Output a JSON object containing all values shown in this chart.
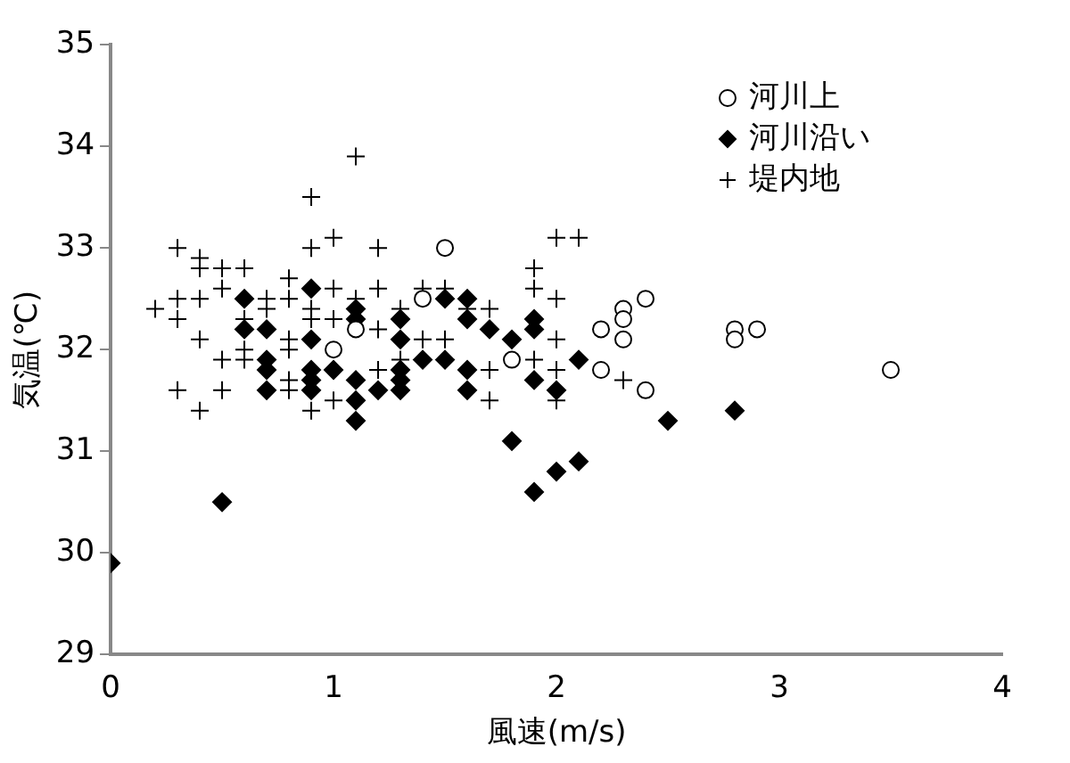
{
  "chart_data": {
    "type": "scatter",
    "xlabel": "風速(m/s)",
    "ylabel": "気温(℃)",
    "xlim": [
      0,
      4
    ],
    "xticks": [
      0,
      1,
      2,
      3,
      4
    ],
    "ylim": [
      29,
      35
    ],
    "yticks": [
      29,
      30,
      31,
      32,
      33,
      34,
      35
    ],
    "grid": false,
    "legend": "top right",
    "series": [
      {
        "name": "河川上",
        "color": "#000000",
        "marker": "circle",
        "x": [
          1.0,
          1.1,
          1.5,
          1.4,
          1.8,
          2.2,
          2.2,
          2.3,
          2.3,
          2.3,
          2.4,
          2.4,
          2.8,
          2.8,
          2.9,
          3.5
        ],
        "values": [
          32.0,
          32.2,
          33.0,
          32.5,
          31.9,
          32.2,
          31.8,
          32.4,
          32.3,
          32.1,
          32.5,
          31.6,
          32.2,
          32.1,
          32.2,
          31.8
        ]
      },
      {
        "name": "河川沿い",
        "color": "#000000",
        "marker": "diamond",
        "x": [
          0,
          0.5,
          0.6,
          0.6,
          0.7,
          0.7,
          0.7,
          0.7,
          0.9,
          0.9,
          0.9,
          0.9,
          0.9,
          1.0,
          1.1,
          1.1,
          1.1,
          1.1,
          1.1,
          1.2,
          1.3,
          1.3,
          1.3,
          1.3,
          1.3,
          1.4,
          1.5,
          1.5,
          1.6,
          1.6,
          1.6,
          1.6,
          1.7,
          1.8,
          1.8,
          1.9,
          1.9,
          1.9,
          1.9,
          2.0,
          2.0,
          2.1,
          2.1,
          2.5,
          2.8
        ],
        "values": [
          29.9,
          30.5,
          32.5,
          32.2,
          32.2,
          31.9,
          31.8,
          31.6,
          32.6,
          32.1,
          31.8,
          31.7,
          31.6,
          31.8,
          32.4,
          32.3,
          31.7,
          31.5,
          31.3,
          31.6,
          32.3,
          32.1,
          31.8,
          31.7,
          31.6,
          31.9,
          32.5,
          31.9,
          32.5,
          32.3,
          31.8,
          31.6,
          32.2,
          32.1,
          31.1,
          32.3,
          32.2,
          31.7,
          30.6,
          31.6,
          30.8,
          31.9,
          30.9,
          31.3,
          31.4
        ]
      },
      {
        "name": "堤内地",
        "color": "#000000",
        "marker": "cross",
        "x": [
          0.2,
          0.3,
          0.3,
          0.3,
          0.3,
          0.4,
          0.4,
          0.4,
          0.4,
          0.4,
          0.5,
          0.5,
          0.5,
          0.5,
          0.6,
          0.6,
          0.6,
          0.6,
          0.7,
          0.7,
          0.8,
          0.8,
          0.8,
          0.8,
          0.8,
          0.8,
          0.9,
          0.9,
          0.9,
          0.9,
          0.9,
          1.0,
          1.0,
          1.0,
          1.0,
          1.1,
          1.1,
          1.2,
          1.2,
          1.2,
          1.2,
          1.3,
          1.3,
          1.4,
          1.4,
          1.5,
          1.5,
          1.6,
          1.7,
          1.7,
          1.7,
          1.9,
          1.9,
          1.9,
          2.0,
          2.1,
          2.0,
          2.0,
          2.0,
          2.0,
          2.3
        ],
        "values": [
          32.4,
          33.0,
          32.5,
          32.3,
          31.6,
          32.9,
          32.8,
          32.5,
          32.1,
          31.4,
          32.8,
          32.6,
          31.9,
          31.6,
          32.8,
          32.3,
          32.0,
          31.9,
          32.5,
          32.4,
          32.7,
          32.5,
          32.1,
          32.0,
          31.7,
          31.6,
          33.5,
          33.0,
          32.4,
          32.3,
          31.4,
          33.1,
          32.6,
          32.3,
          31.5,
          33.9,
          32.5,
          33.0,
          32.6,
          32.2,
          31.8,
          32.4,
          31.9,
          32.6,
          32.1,
          32.6,
          32.1,
          32.4,
          32.4,
          31.8,
          31.5,
          32.8,
          32.6,
          31.9,
          33.1,
          33.1,
          32.5,
          32.1,
          31.8,
          31.5,
          31.7
        ]
      }
    ]
  }
}
